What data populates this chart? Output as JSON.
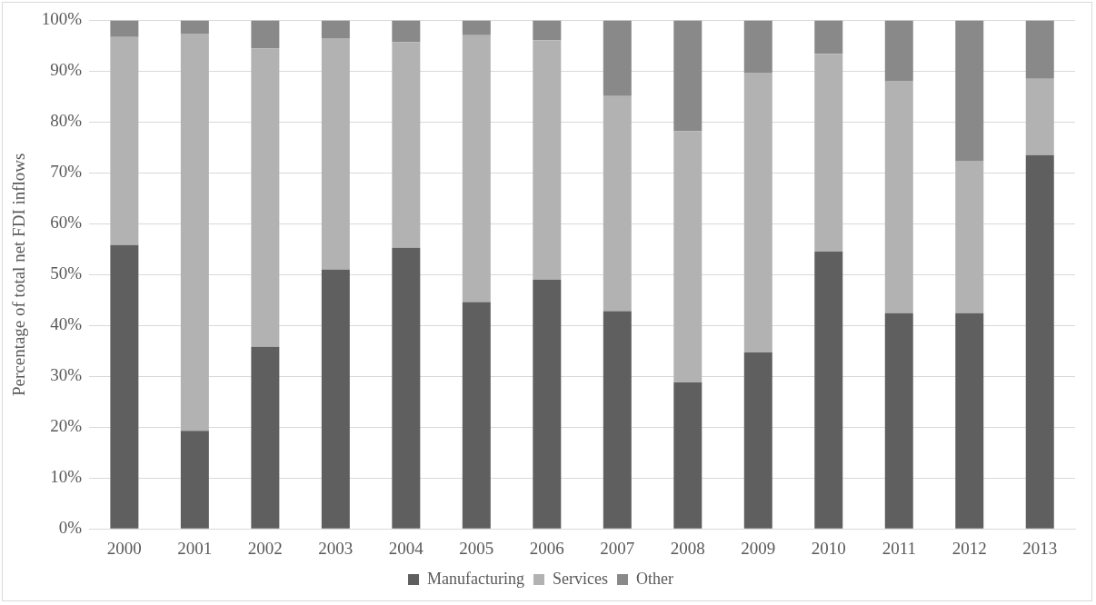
{
  "chart_data": {
    "type": "bar",
    "stacked": true,
    "ylabel": "Percentage of total net FDI inflows",
    "categories": [
      "2000",
      "2001",
      "2002",
      "2003",
      "2004",
      "2005",
      "2006",
      "2007",
      "2008",
      "2009",
      "2010",
      "2011",
      "2012",
      "2013"
    ],
    "series": [
      {
        "name": "Manufacturing",
        "color": "#5f5f5f",
        "values": [
          55.8,
          19.3,
          35.8,
          51.0,
          55.3,
          44.6,
          49.0,
          42.8,
          28.8,
          34.7,
          54.5,
          42.4,
          42.4,
          73.5
        ]
      },
      {
        "name": "Services",
        "color": "#b2b2b2",
        "values": [
          40.9,
          78.1,
          58.7,
          45.5,
          40.4,
          52.5,
          47.1,
          42.3,
          49.4,
          55.0,
          38.9,
          45.7,
          30.0,
          15.0
        ]
      },
      {
        "name": "Other",
        "color": "#898989",
        "values": [
          3.3,
          2.6,
          5.5,
          3.5,
          4.3,
          2.9,
          3.9,
          14.9,
          21.8,
          10.3,
          6.6,
          11.9,
          27.6,
          11.5
        ]
      }
    ],
    "ylim": [
      0,
      100
    ],
    "yticks": [
      {
        "value": 0,
        "label": "0%"
      },
      {
        "value": 10,
        "label": "10%"
      },
      {
        "value": 20,
        "label": "20%"
      },
      {
        "value": 30,
        "label": "30%"
      },
      {
        "value": 40,
        "label": "40%"
      },
      {
        "value": 50,
        "label": "50%"
      },
      {
        "value": 60,
        "label": "60%"
      },
      {
        "value": 70,
        "label": "70%"
      },
      {
        "value": 80,
        "label": "80%"
      },
      {
        "value": 90,
        "label": "90%"
      },
      {
        "value": 100,
        "label": "100%"
      }
    ],
    "grid": "y",
    "legend": "bottom"
  }
}
